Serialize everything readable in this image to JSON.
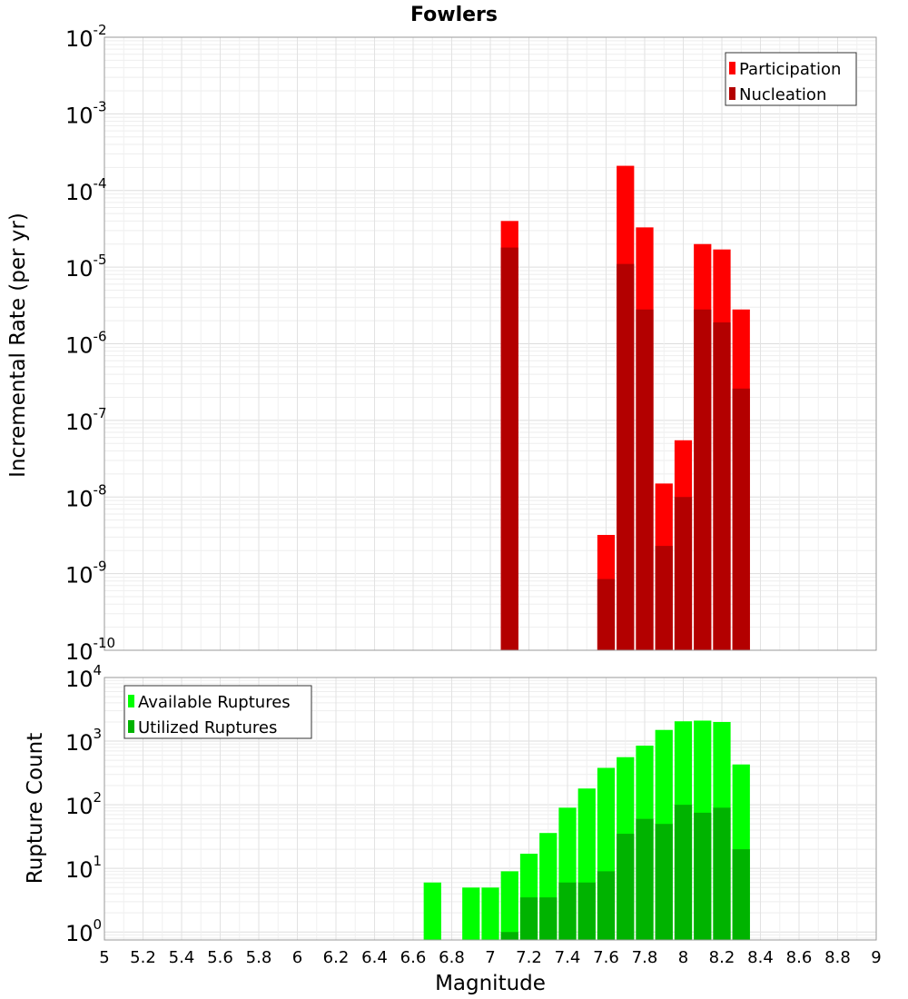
{
  "chart_data": [
    {
      "type": "bar",
      "title": "Fowlers",
      "xlabel": "Magnitude",
      "ylabel": "Incremental Rate (per yr)",
      "y_scale": "log",
      "ylim": [
        1e-10,
        0.01
      ],
      "xlim": [
        5,
        9
      ],
      "grid": true,
      "legend_position": "top-right",
      "y_ticks": [
        {
          "base": "10",
          "exp": "-10",
          "value": 1e-10
        },
        {
          "base": "10",
          "exp": "-9",
          "value": 1e-09
        },
        {
          "base": "10",
          "exp": "-8",
          "value": 1e-08
        },
        {
          "base": "10",
          "exp": "-7",
          "value": 1e-07
        },
        {
          "base": "10",
          "exp": "-6",
          "value": 1e-06
        },
        {
          "base": "10",
          "exp": "-5",
          "value": 1e-05
        },
        {
          "base": "10",
          "exp": "-4",
          "value": 0.0001
        },
        {
          "base": "10",
          "exp": "-3",
          "value": 0.001
        },
        {
          "base": "10",
          "exp": "-2",
          "value": 0.01
        }
      ],
      "x": [
        7.1,
        7.6,
        7.7,
        7.8,
        7.9,
        8.0,
        8.1,
        8.2,
        8.3
      ],
      "series": [
        {
          "name": "Participation",
          "color": "#ff0000",
          "values": [
            4e-05,
            3.2e-09,
            0.00021,
            3.3e-05,
            1.5e-08,
            5.5e-08,
            2e-05,
            1.7e-05,
            2.8e-06
          ]
        },
        {
          "name": "Nucleation",
          "color": "#b30000",
          "values": [
            1.8e-05,
            8.5e-10,
            1.1e-05,
            2.8e-06,
            2.3e-09,
            1e-08,
            2.8e-06,
            1.9e-06,
            2.6e-07
          ]
        }
      ]
    },
    {
      "type": "bar",
      "xlabel": "Magnitude",
      "ylabel": "Rupture Count",
      "y_scale": "log",
      "ylim": [
        0.75,
        10000
      ],
      "xlim": [
        5,
        9
      ],
      "grid": true,
      "legend_position": "top-left",
      "y_ticks": [
        {
          "base": "10",
          "exp": "0",
          "value": 1
        },
        {
          "base": "10",
          "exp": "1",
          "value": 10
        },
        {
          "base": "10",
          "exp": "2",
          "value": 100
        },
        {
          "base": "10",
          "exp": "3",
          "value": 1000
        },
        {
          "base": "10",
          "exp": "4",
          "value": 10000
        }
      ],
      "x_ticks": [
        "5",
        "5.2",
        "5.4",
        "5.6",
        "5.8",
        "6",
        "6.2",
        "6.4",
        "6.6",
        "6.8",
        "7",
        "7.2",
        "7.4",
        "7.6",
        "7.8",
        "8",
        "8.2",
        "8.4",
        "8.6",
        "8.8",
        "9"
      ],
      "x": [
        6.7,
        6.9,
        7.0,
        7.1,
        7.2,
        7.3,
        7.4,
        7.5,
        7.6,
        7.7,
        7.8,
        7.9,
        8.0,
        8.1,
        8.2,
        8.3
      ],
      "series": [
        {
          "name": "Available Ruptures",
          "color": "#00ff00",
          "values": [
            6,
            5,
            5,
            9,
            17,
            36,
            90,
            180,
            380,
            560,
            850,
            1500,
            2050,
            2100,
            2000,
            430
          ]
        },
        {
          "name": "Utilized Ruptures",
          "color": "#00b300",
          "values": [
            null,
            null,
            null,
            1,
            3.5,
            3.5,
            6,
            6,
            9,
            35,
            60,
            50,
            100,
            75,
            90,
            20
          ]
        }
      ]
    }
  ]
}
